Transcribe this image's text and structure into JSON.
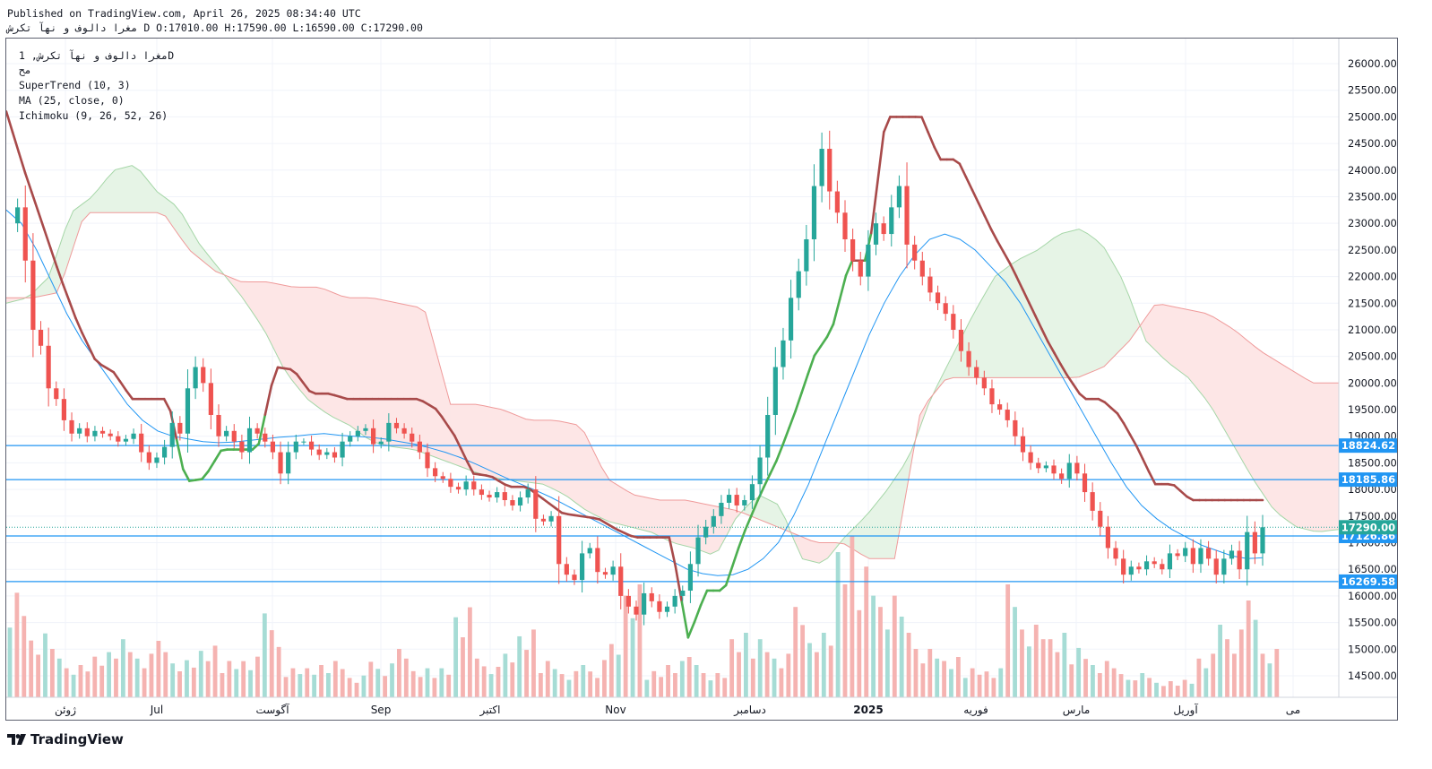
{
  "header": {
    "published_line": "Published on TradingView.com, April 26, 2025 08:34:40 UTC",
    "ohlc_line": "مغرا دالوف و نهآ تکرش D O:17010.00 H:17590.00 L:16590.00 C:17290.00"
  },
  "legend": {
    "symbol_line": "مغرا دالوف و نهآ تکرش, 1D",
    "extra_line": "مح",
    "supertrend": "SuperTrend (10, 3)",
    "ma": "MA (25, close, 0)",
    "ichimoku": "Ichimoku (9, 26, 52, 26)"
  },
  "footer": {
    "brand": "TradingView"
  },
  "colors": {
    "up_candle": "#26a69a",
    "down_candle": "#ef5350",
    "supertrend_up": "#4caf50",
    "supertrend_down": "#a84a4a",
    "ma_line": "#2196f3",
    "cloud_bull": "#e6f4e6",
    "cloud_bear": "#fde6e6",
    "hline": "#2196f3",
    "price_label": "#26a69a",
    "level_label": "#2196f3"
  },
  "chart_data": {
    "type": "candlestick",
    "title": "",
    "timeframe": "1D",
    "ylim": [
      14000,
      26500
    ],
    "y_ticks": [
      14500,
      15000,
      15500,
      16000,
      16500,
      17000,
      17500,
      18000,
      18500,
      19000,
      19500,
      20000,
      20500,
      21000,
      21500,
      22000,
      22500,
      23000,
      23500,
      24000,
      24500,
      25000,
      25500,
      26000
    ],
    "x_tick_labels": [
      "ژوئن",
      "Jul",
      "آگوست",
      "Sep",
      "اکتبر",
      "Nov",
      "دسامبر",
      "2025",
      "فوریه",
      "مارس",
      "آوریل",
      "می"
    ],
    "last_price": 17290.0,
    "last_bar_ohlc": {
      "open": 17010.0,
      "high": 17590.0,
      "low": 16590.0,
      "close": 17290.0
    },
    "horizontal_levels": [
      18824.62,
      18185.86,
      17126.86,
      16269.58
    ],
    "price_path": [
      23000,
      23300,
      22300,
      21000,
      20700,
      19900,
      19700,
      19300,
      19050,
      19150,
      19000,
      19100,
      19050,
      19000,
      18900,
      18950,
      19050,
      18700,
      18500,
      18600,
      18800,
      19250,
      19050,
      19900,
      20300,
      20000,
      19400,
      19000,
      19100,
      18900,
      18700,
      19150,
      19050,
      18900,
      18700,
      18300,
      18700,
      18900,
      18900,
      18750,
      18650,
      18700,
      18600,
      18900,
      19000,
      19100,
      19150,
      18850,
      18900,
      19250,
      19150,
      19050,
      18900,
      18700,
      18400,
      18250,
      18200,
      18050,
      18000,
      18150,
      18000,
      17900,
      17850,
      17950,
      17800,
      17700,
      17850,
      18000,
      17450,
      17400,
      17500,
      16600,
      16400,
      16300,
      16800,
      16900,
      16450,
      16400,
      16550,
      16000,
      15800,
      15650,
      16050,
      15900,
      15700,
      15800,
      16000,
      16100,
      16600,
      17100,
      17300,
      17500,
      17750,
      17900,
      17700,
      17800,
      18100,
      18600,
      19400,
      20300,
      20800,
      21600,
      22100,
      22700,
      23700,
      24400,
      23600,
      23200,
      22700,
      22300,
      22000,
      22600,
      23000,
      22800,
      23300,
      23700,
      22600,
      22300,
      22000,
      21700,
      21500,
      21300,
      21000,
      20600,
      20300,
      20100,
      19900,
      19600,
      19500,
      19300,
      19000,
      18700,
      18500,
      18400,
      18450,
      18300,
      18200,
      18500,
      18300,
      17950,
      17600,
      17300,
      16900,
      16700,
      16400,
      16550,
      16500,
      16650,
      16600,
      16500,
      16800,
      16750,
      16900,
      16600,
      16900,
      16700,
      16400,
      16700,
      16850,
      16500,
      17200,
      16800,
      17290
    ],
    "ma_path": [
      23250,
      23000,
      22500,
      21900,
      21300,
      20800,
      20400,
      20000,
      19600,
      19300,
      19100,
      19000,
      18950,
      18900,
      18880,
      18890,
      18920,
      18950,
      18980,
      19000,
      19030,
      19050,
      19020,
      19000,
      18980,
      18950,
      18900,
      18850,
      18780,
      18700,
      18600,
      18480,
      18350,
      18220,
      18100,
      17980,
      17850,
      17700,
      17550,
      17400,
      17250,
      17100,
      16950,
      16800,
      16650,
      16500,
      16420,
      16380,
      16400,
      16500,
      16700,
      17000,
      17500,
      18100,
      18800,
      19500,
      20200,
      20900,
      21500,
      22000,
      22400,
      22700,
      22800,
      22700,
      22500,
      22200,
      21900,
      21500,
      21000,
      20500,
      20000,
      19500,
      19000,
      18500,
      18050,
      17700,
      17450,
      17250,
      17100,
      16950,
      16850,
      16750,
      16700,
      16720
    ],
    "supertrend_path": [
      25100,
      24000,
      23000,
      22000,
      21100,
      20400,
      20200,
      19700,
      19700,
      19700,
      18150,
      18200,
      18750,
      18750,
      18750,
      20300,
      20250,
      19800,
      19800,
      19700,
      19700,
      19700,
      19700,
      19700,
      19500,
      19000,
      18300,
      18250,
      18050,
      18050,
      17800,
      17550,
      17500,
      17450,
      17250,
      17100,
      17100,
      17100,
      15200,
      16100,
      16100,
      17100,
      17900,
      18600,
      19500,
      20500,
      21000,
      22300,
      22300,
      25000,
      25000,
      25000,
      24200,
      24200,
      23500,
      22800,
      22200,
      21500,
      20800,
      20200,
      19700,
      19700,
      19400,
      18800,
      18100,
      18100,
      17800,
      17800,
      17800,
      17800,
      17800
    ],
    "ichimoku_span_a_path": [
      21500,
      21600,
      22000,
      23200,
      23500,
      24000,
      24100,
      23600,
      23300,
      22600,
      22100,
      21600,
      21000,
      20200,
      19700,
      19400,
      19200,
      18900,
      18800,
      18750,
      18600,
      18450,
      18300,
      18200,
      18150,
      18100,
      17900,
      17600,
      17400,
      17300,
      17200,
      17000,
      16900,
      16750,
      17500,
      17900,
      17700,
      16700,
      16600,
      17100,
      17500,
      18000,
      18600,
      19700,
      20500,
      21300,
      22000,
      22300,
      22500,
      22800,
      22900,
      22600,
      21900,
      20800,
      20400,
      20100,
      19600,
      18900,
      18200,
      17600,
      17300,
      17200,
      17250
    ],
    "ichimoku_span_b_path": [
      21600,
      21600,
      21700,
      23200,
      23200,
      23200,
      23200,
      22500,
      22100,
      21900,
      21900,
      21800,
      21800,
      21600,
      21600,
      21500,
      21400,
      19600,
      19600,
      19500,
      19300,
      19300,
      19200,
      18200,
      17900,
      17800,
      17800,
      17700,
      17600,
      17400,
      17200,
      17000,
      17000,
      16700,
      16700,
      19500,
      20100,
      20100,
      20100,
      20100,
      20100,
      20100,
      20300,
      20800,
      21500,
      21400,
      21300,
      21000,
      20600,
      20300,
      20000,
      20000
    ],
    "volume_relative_heights": [
      0.72,
      0.44,
      0.3,
      0.2,
      0.28,
      0.4,
      0.3,
      0.35,
      0.23,
      0.32,
      0.25,
      0.28,
      0.52,
      0.18,
      0.2,
      0.25,
      0.15,
      0.22,
      0.3,
      0.18,
      0.2,
      0.62,
      0.24,
      0.27,
      0.42,
      0.25,
      0.18,
      0.2,
      0.33,
      0.7,
      0.18,
      0.25,
      0.25,
      0.15,
      0.4,
      0.4,
      0.3,
      0.56,
      0.4,
      1.0,
      0.9,
      0.7,
      0.5,
      0.3,
      0.25,
      0.2,
      0.2,
      0.7,
      0.45,
      0.4,
      0.34,
      0.25,
      0.18,
      0.15,
      0.1,
      0.12,
      0.3,
      0.45,
      0.6,
      0.3
    ]
  }
}
